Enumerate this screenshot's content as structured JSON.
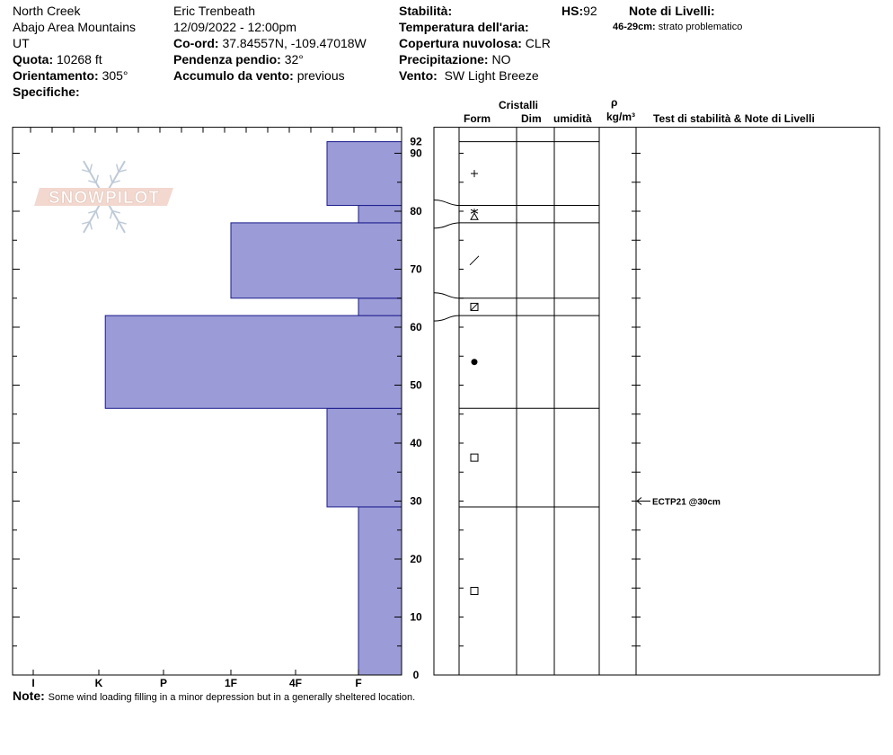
{
  "header": {
    "location": "North Creek",
    "range": "Abajo Area Mountains",
    "state": "UT",
    "elevation_label": "Quota:",
    "elevation_value": "10268 ft",
    "aspect_label": "Orientamento:",
    "aspect_value": "305°",
    "specifics_label": "Specifiche:",
    "observer": "Eric Trenbeath",
    "datetime": "12/09/2022 - 12:00pm",
    "coords_label": "Co-ord:",
    "coords_value": "37.84557N, -109.47018W",
    "slope_label": "Pendenza pendio:",
    "slope_value": "32°",
    "wind_loading_label": "Accumulo da vento:",
    "wind_loading_value": "previous",
    "stability_label": "Stabilità:",
    "air_temp_label": "Temperatura dell'aria:",
    "cloud_label": "Copertura nuvolosa:",
    "cloud_value": "CLR",
    "precip_label": "Precipitazione:",
    "precip_value": "NO",
    "wind_label": "Vento:",
    "wind_value": "SW Light Breeze",
    "hs_label": "HS:",
    "hs_value": "92",
    "layer_notes_label": "Note di Livelli:",
    "layer_note_range": "46-29cm:",
    "layer_note_text": "strato problematico"
  },
  "columns": {
    "crystals": "Cristalli",
    "form": "Form",
    "size": "Dim",
    "moisture": "umidità",
    "rho": "ρ",
    "density_unit": "kg/m³",
    "tests": "Test di stabilità & Note di Livelli"
  },
  "logo_text": "SNOWPILOT",
  "footer": {
    "note_label": "Note:",
    "note_text": "Some wind loading filling in a minor depression but in a generally sheltered location."
  },
  "chart_data": {
    "type": "bar",
    "title": "",
    "hardness_scale": [
      "I",
      "K",
      "P",
      "1F",
      "4F",
      "F"
    ],
    "y_ticks": [
      0,
      10,
      20,
      30,
      40,
      50,
      60,
      70,
      80,
      90
    ],
    "top_label": "92",
    "ylim": [
      0,
      92
    ],
    "layers": [
      {
        "bottom": 0,
        "top": 29,
        "hardness": 1.0,
        "form": "square"
      },
      {
        "bottom": 29,
        "top": 46,
        "hardness": 1.5,
        "form": "square"
      },
      {
        "bottom": 46,
        "top": 62,
        "hardness": 4.9,
        "form": "dot"
      },
      {
        "bottom": 62,
        "top": 65,
        "hardness": 1.0,
        "form": "boxslash"
      },
      {
        "bottom": 65,
        "top": 78,
        "hardness": 3.0,
        "form": "slash"
      },
      {
        "bottom": 78,
        "top": 81,
        "hardness": 1.0,
        "form": "star-triangle"
      },
      {
        "bottom": 81,
        "top": 92,
        "hardness": 1.5,
        "form": "plus"
      }
    ],
    "test_result": {
      "depth": 30,
      "text": "ECTP21 @30cm"
    }
  }
}
